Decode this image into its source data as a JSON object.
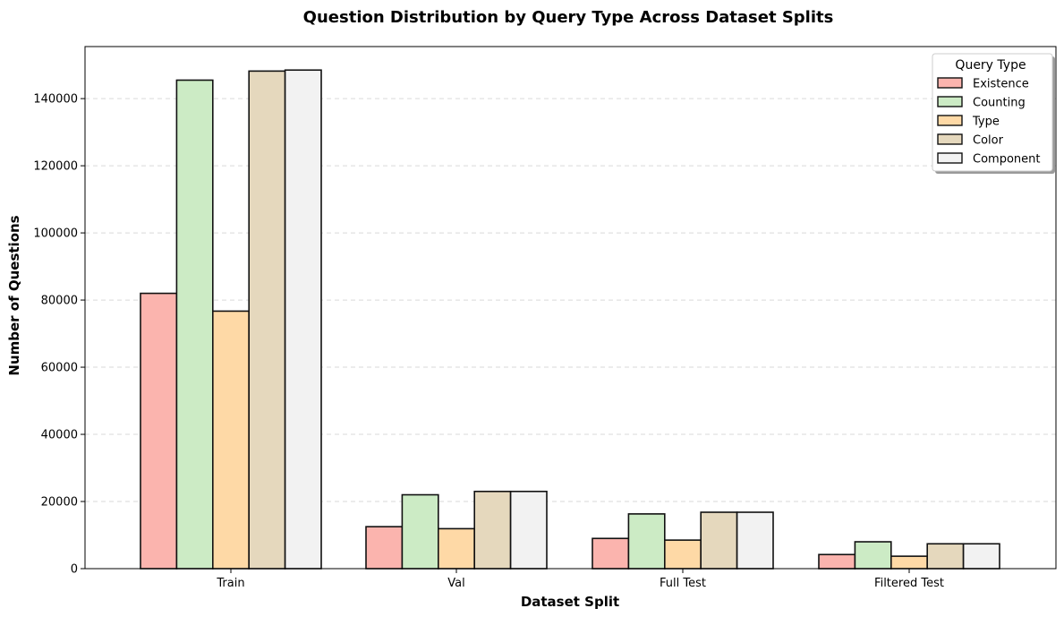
{
  "chart_data": {
    "type": "bar",
    "title": "Question Distribution by Query Type Across Dataset Splits",
    "xlabel": "Dataset Split",
    "ylabel": "Number of Questions",
    "categories": [
      "Train",
      "Val",
      "Full Test",
      "Filtered Test"
    ],
    "ylim": [
      0,
      155500
    ],
    "yticks": [
      0,
      20000,
      40000,
      60000,
      80000,
      100000,
      120000,
      140000
    ],
    "grid": "y-dashed",
    "legend": {
      "title": "Query Type",
      "placement": "top-right"
    },
    "series": [
      {
        "name": "Existence",
        "color": "#fbb4ae",
        "values": [
          82000,
          12500,
          9000,
          4200
        ]
      },
      {
        "name": "Counting",
        "color": "#ccebc5",
        "values": [
          145500,
          22000,
          16300,
          8000
        ]
      },
      {
        "name": "Type",
        "color": "#fed9a6",
        "values": [
          76700,
          11900,
          8500,
          3700
        ]
      },
      {
        "name": "Color",
        "color": "#e5d8bd",
        "values": [
          148200,
          23000,
          16800,
          7400
        ]
      },
      {
        "name": "Component",
        "color": "#f2f2f2",
        "values": [
          148500,
          23000,
          16800,
          7400
        ]
      }
    ]
  }
}
